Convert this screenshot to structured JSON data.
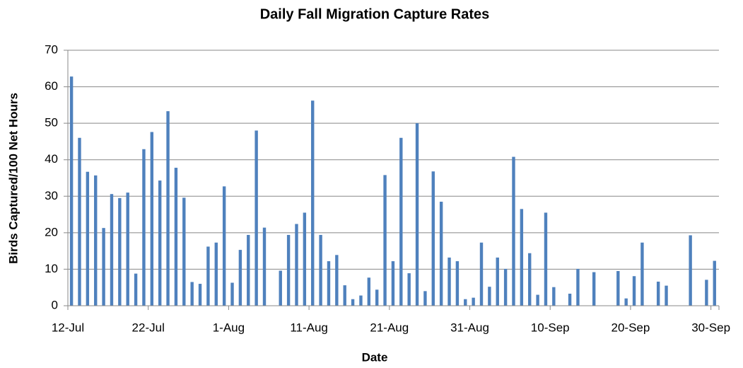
{
  "chart_data": {
    "type": "bar",
    "title": "Daily Fall Migration Capture Rates",
    "x_label": "Date",
    "y_label": "Birds Captured/100 Net Hours",
    "categories": [
      "12-Jul",
      null,
      null,
      null,
      null,
      null,
      null,
      null,
      null,
      null,
      "22-Jul",
      null,
      null,
      null,
      null,
      null,
      null,
      null,
      null,
      null,
      "1-Aug",
      null,
      null,
      null,
      null,
      null,
      null,
      null,
      null,
      null,
      "11-Aug",
      null,
      null,
      null,
      null,
      null,
      null,
      null,
      null,
      null,
      "21-Aug",
      null,
      null,
      null,
      null,
      null,
      null,
      null,
      null,
      null,
      "31-Aug",
      null,
      null,
      null,
      null,
      null,
      null,
      null,
      null,
      null,
      "10-Sep",
      null,
      null,
      null,
      null,
      null,
      null,
      null,
      null,
      null,
      "20-Sep",
      null,
      null,
      null,
      null,
      null,
      null,
      null,
      null,
      null,
      "30-Sep"
    ],
    "values": [
      62.8,
      46,
      36.7,
      35.7,
      21.3,
      30.6,
      29.5,
      31,
      8.8,
      42.9,
      47.6,
      34.3,
      53.3,
      37.8,
      29.6,
      6.5,
      6,
      16.2,
      17.3,
      32.7,
      6.3,
      15.3,
      19.4,
      48,
      21.4,
      null,
      9.6,
      19.4,
      22.4,
      25.5,
      56.2,
      19.4,
      12.2,
      13.9,
      5.6,
      1.8,
      2.8,
      7.7,
      4.4,
      35.8,
      12.2,
      46,
      8.9,
      50,
      4,
      36.8,
      28.5,
      13.2,
      12.2,
      1.8,
      2.2,
      17.3,
      5.2,
      13.2,
      10.1,
      40.8,
      26.5,
      14.4,
      3,
      25.5,
      5.1,
      null,
      3.3,
      10.1,
      null,
      9.2,
      null,
      null,
      9.5,
      2,
      8.1,
      17.3,
      null,
      6.6,
      5.5,
      null,
      null,
      19.3,
      null,
      7.1,
      12.3
    ],
    "color": "#4f81bd",
    "ylim": [
      0,
      70
    ],
    "yticks": [
      0,
      10,
      20,
      30,
      40,
      50,
      60,
      70
    ],
    "grid": true
  }
}
